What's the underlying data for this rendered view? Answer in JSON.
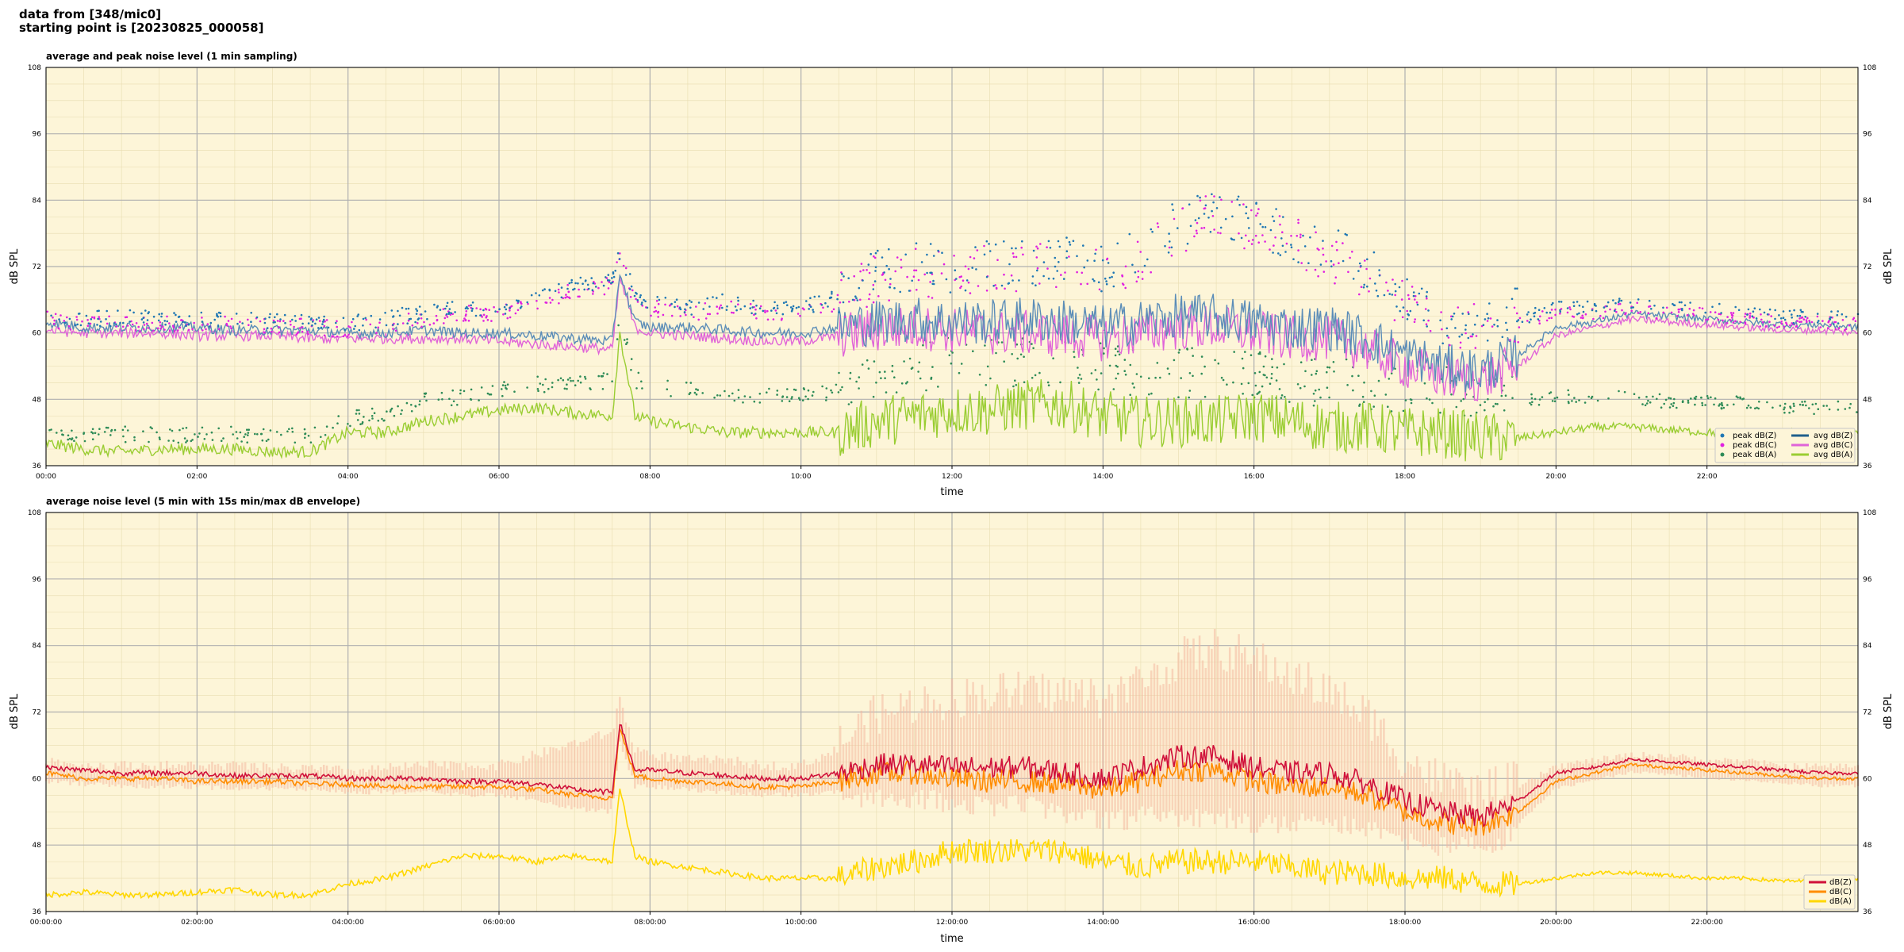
{
  "header": {
    "line1": "data from [348/mic0]",
    "line2": "starting point is [20230825_000058]"
  },
  "panel_top": {
    "title": "average and peak noise level (1 min sampling)",
    "ylabel": "dB SPL",
    "xlabel": "time",
    "legend": [
      "peak dB(Z)",
      "peak dB(C)",
      "peak dB(A)",
      "avg dB(Z)",
      "avg dB(C)",
      "avg dB(A)"
    ]
  },
  "panel_bottom": {
    "title": "average noise level (5 min with 15s min/max dB envelope)",
    "ylabel": "dB SPL",
    "xlabel": "time",
    "legend": [
      "dB(Z)",
      "dB(C)",
      "dB(A)"
    ]
  },
  "colors": {
    "background": "#fdf5d8",
    "avg_z": "#5b8db8",
    "avg_c": "#e064d8",
    "avg_a": "#9acd32",
    "peak_z": "#1f77b4",
    "peak_c": "#e020e0",
    "peak_a": "#2e8b57",
    "dbz": "#d0103a",
    "dbc": "#ff8c00",
    "dba": "#ffd700",
    "envelope": "#f4b8a0"
  },
  "chart_data": [
    {
      "type": "line",
      "title": "average and peak noise level (1 min sampling)",
      "xlabel": "time",
      "ylabel": "dB SPL",
      "xlim": [
        0,
        24
      ],
      "ylim": [
        36,
        108
      ],
      "yticks": [
        "36",
        "48",
        "60",
        "72",
        "84",
        "96",
        "108"
      ],
      "xtick_labels": [
        "00:00",
        "02:00",
        "04:00",
        "06:00",
        "08:00",
        "10:00",
        "12:00",
        "14:00",
        "16:00",
        "18:00",
        "20:00",
        "22:00"
      ],
      "grid": true,
      "legend_position": "lower-right",
      "x_hours": [
        0,
        0.5,
        1,
        1.5,
        2,
        2.5,
        3,
        3.5,
        4,
        4.5,
        5,
        5.5,
        6,
        6.5,
        7,
        7.5,
        7.6,
        7.8,
        8,
        8.5,
        9,
        9.5,
        10,
        10.5,
        11,
        11.5,
        12,
        12.5,
        13,
        13.5,
        14,
        14.5,
        15,
        15.5,
        16,
        16.5,
        17,
        17.5,
        18,
        18.5,
        19,
        19.5,
        20,
        20.5,
        21,
        21.5,
        22,
        22.5,
        23,
        23.5,
        24
      ],
      "series": [
        {
          "name": "avg dB(Z)",
          "values": [
            62,
            61,
            61,
            61,
            61,
            60.5,
            60.5,
            60.5,
            60,
            60,
            60.5,
            60,
            60,
            59.5,
            59,
            58.5,
            71,
            62,
            61,
            61,
            60.5,
            60,
            60,
            61,
            62,
            62.5,
            62,
            62,
            62.5,
            62,
            61,
            62,
            63,
            63,
            62,
            61,
            61,
            59,
            56,
            54,
            53,
            56,
            61,
            62,
            63.5,
            63,
            62.5,
            62,
            61.5,
            61.5,
            61
          ]
        },
        {
          "name": "avg dB(C)",
          "values": [
            60.5,
            60,
            60,
            60,
            59.5,
            59.5,
            59.5,
            59,
            59,
            59,
            59,
            59,
            58.5,
            58,
            57.5,
            57,
            70,
            61,
            60,
            59.5,
            59,
            58.5,
            58.5,
            59.5,
            60.5,
            61,
            60.5,
            60,
            60,
            59.5,
            59,
            60,
            61,
            61,
            60,
            59,
            59,
            57,
            54,
            52,
            51.5,
            54,
            59.5,
            61,
            62.5,
            62,
            61.5,
            61,
            60.5,
            60.5,
            60
          ]
        },
        {
          "name": "avg dB(A)",
          "values": [
            40,
            39,
            38.5,
            39,
            39,
            39,
            38.5,
            38.5,
            42,
            42,
            44,
            45,
            46,
            46.5,
            45.5,
            45,
            60,
            45,
            44,
            43,
            42,
            42,
            42,
            42,
            44,
            45,
            46,
            46,
            47,
            47,
            45,
            44,
            44,
            44,
            45,
            44,
            43,
            43,
            42,
            42,
            41,
            41,
            42,
            43,
            43,
            42.5,
            42,
            42,
            42,
            42,
            42
          ]
        },
        {
          "name": "peak dB(Z)",
          "values": [
            63,
            62,
            62,
            62,
            62,
            62,
            61.5,
            61.5,
            61,
            62,
            63,
            64,
            64,
            66,
            68,
            69,
            74,
            66,
            65,
            64,
            65,
            64,
            64,
            66,
            69,
            70,
            70,
            71,
            71,
            71,
            70,
            73,
            78,
            80,
            78,
            76,
            73,
            70,
            64,
            60,
            60,
            62,
            64,
            64,
            65,
            64,
            64,
            63,
            62.5,
            62.5,
            62
          ]
        },
        {
          "name": "peak dB(C)",
          "values": [
            62,
            61,
            61,
            61,
            61,
            61,
            60.5,
            60.5,
            60,
            61,
            62,
            63,
            63,
            65,
            67,
            68,
            73,
            65,
            64,
            63,
            64,
            63,
            63,
            65,
            68,
            69,
            69,
            70,
            70,
            70,
            69,
            72,
            77,
            79,
            77,
            75,
            72,
            69,
            63,
            59,
            59,
            61,
            63,
            63,
            64,
            63,
            63,
            62,
            61.5,
            61.5,
            61
          ]
        },
        {
          "name": "peak dB(A)",
          "values": [
            42,
            41,
            41,
            41,
            41,
            41,
            41,
            41,
            44,
            45,
            47,
            48,
            49,
            50,
            50,
            51,
            63,
            51,
            50,
            49,
            48,
            48,
            48,
            49,
            51,
            52,
            53,
            53,
            53,
            53,
            52,
            51,
            51,
            51,
            51,
            50,
            49,
            49,
            48,
            48,
            47,
            47,
            48,
            48,
            48,
            47,
            47,
            47,
            46,
            46,
            46
          ]
        }
      ]
    },
    {
      "type": "line",
      "title": "average noise level (5 min with 15s min/max dB envelope)",
      "xlabel": "time",
      "ylabel": "dB SPL",
      "xlim": [
        0,
        24
      ],
      "ylim": [
        36,
        108
      ],
      "yticks": [
        "36",
        "48",
        "60",
        "72",
        "84",
        "96",
        "108"
      ],
      "xtick_labels": [
        "00:00:00",
        "02:00:00",
        "04:00:00",
        "06:00:00",
        "08:00:00",
        "10:00:00",
        "12:00:00",
        "14:00:00",
        "16:00:00",
        "18:00:00",
        "20:00:00",
        "22:00:00"
      ],
      "grid": true,
      "legend_position": "lower-right",
      "x_hours": [
        0,
        0.5,
        1,
        1.5,
        2,
        2.5,
        3,
        3.5,
        4,
        4.5,
        5,
        5.5,
        6,
        6.5,
        7,
        7.5,
        7.6,
        7.8,
        8,
        8.5,
        9,
        9.5,
        10,
        10.5,
        11,
        11.5,
        12,
        12.5,
        13,
        13.5,
        14,
        14.5,
        15,
        15.5,
        16,
        16.5,
        17,
        17.5,
        18,
        18.5,
        19,
        19.5,
        20,
        20.5,
        21,
        21.5,
        22,
        22.5,
        23,
        23.5,
        24
      ],
      "series": [
        {
          "name": "dB(Z)",
          "values": [
            62,
            61.5,
            61,
            61,
            61,
            60.5,
            60.5,
            60.5,
            60,
            60,
            60,
            59.5,
            59.5,
            59,
            58,
            57.5,
            70,
            61.5,
            61.5,
            61,
            60.5,
            60,
            60,
            61,
            62.5,
            62.5,
            62,
            62,
            62,
            61,
            60,
            62,
            64,
            64,
            62,
            61,
            61,
            59,
            56,
            54,
            53,
            56,
            61,
            62,
            63.5,
            63,
            62.5,
            62,
            61.5,
            61,
            61
          ]
        },
        {
          "name": "dB(C)",
          "values": [
            61,
            60,
            60,
            60,
            59.5,
            59.5,
            59.5,
            59,
            59,
            58.5,
            58.5,
            58.5,
            58.5,
            58,
            57,
            56.5,
            69,
            60.5,
            60,
            59.5,
            59,
            58.5,
            58.5,
            59.5,
            61,
            61,
            60,
            59.5,
            59.5,
            59,
            58,
            59.5,
            61.5,
            61.5,
            59.5,
            58.5,
            58.5,
            57,
            54,
            52,
            51.5,
            54,
            59.5,
            61,
            62.5,
            62,
            61.5,
            61,
            60.5,
            60,
            60
          ]
        },
        {
          "name": "dB(A)",
          "values": [
            39,
            39.5,
            39,
            39,
            39.5,
            40,
            39,
            39,
            41,
            42,
            44,
            46,
            46,
            45,
            46,
            45,
            58,
            46,
            45,
            44,
            43,
            42,
            42,
            42,
            44,
            45,
            47,
            47,
            47,
            47,
            45,
            44,
            45,
            45,
            45,
            44,
            43,
            43,
            42,
            42,
            41,
            41,
            42,
            43,
            43,
            42.5,
            42,
            42,
            41.5,
            41.5,
            42
          ]
        },
        {
          "name": "envelope max",
          "values": [
            63,
            62,
            62,
            62,
            62,
            62,
            61.5,
            61.5,
            61,
            61.5,
            62,
            62,
            62,
            64,
            66,
            68,
            74,
            65,
            64,
            63,
            63,
            62,
            62,
            65,
            70,
            72,
            73,
            74,
            74,
            74,
            73,
            76,
            80,
            82,
            80,
            77,
            74,
            70,
            62,
            58,
            56,
            58,
            62,
            63,
            64,
            64,
            63,
            63,
            62,
            62,
            62
          ]
        },
        {
          "name": "envelope min",
          "values": [
            60,
            59.5,
            59,
            59,
            59,
            58.5,
            58.5,
            58.5,
            58,
            58,
            58,
            57.5,
            57.5,
            56.5,
            55,
            54.5,
            67,
            59,
            59,
            58.5,
            58,
            57.5,
            57.5,
            58,
            58.5,
            58.5,
            57.5,
            57,
            57,
            55.5,
            54,
            55,
            55,
            55,
            54,
            54,
            54,
            53,
            51,
            49.5,
            49.5,
            52,
            58.5,
            60,
            61.5,
            61,
            60.5,
            60,
            59.5,
            59,
            59
          ]
        }
      ]
    }
  ]
}
